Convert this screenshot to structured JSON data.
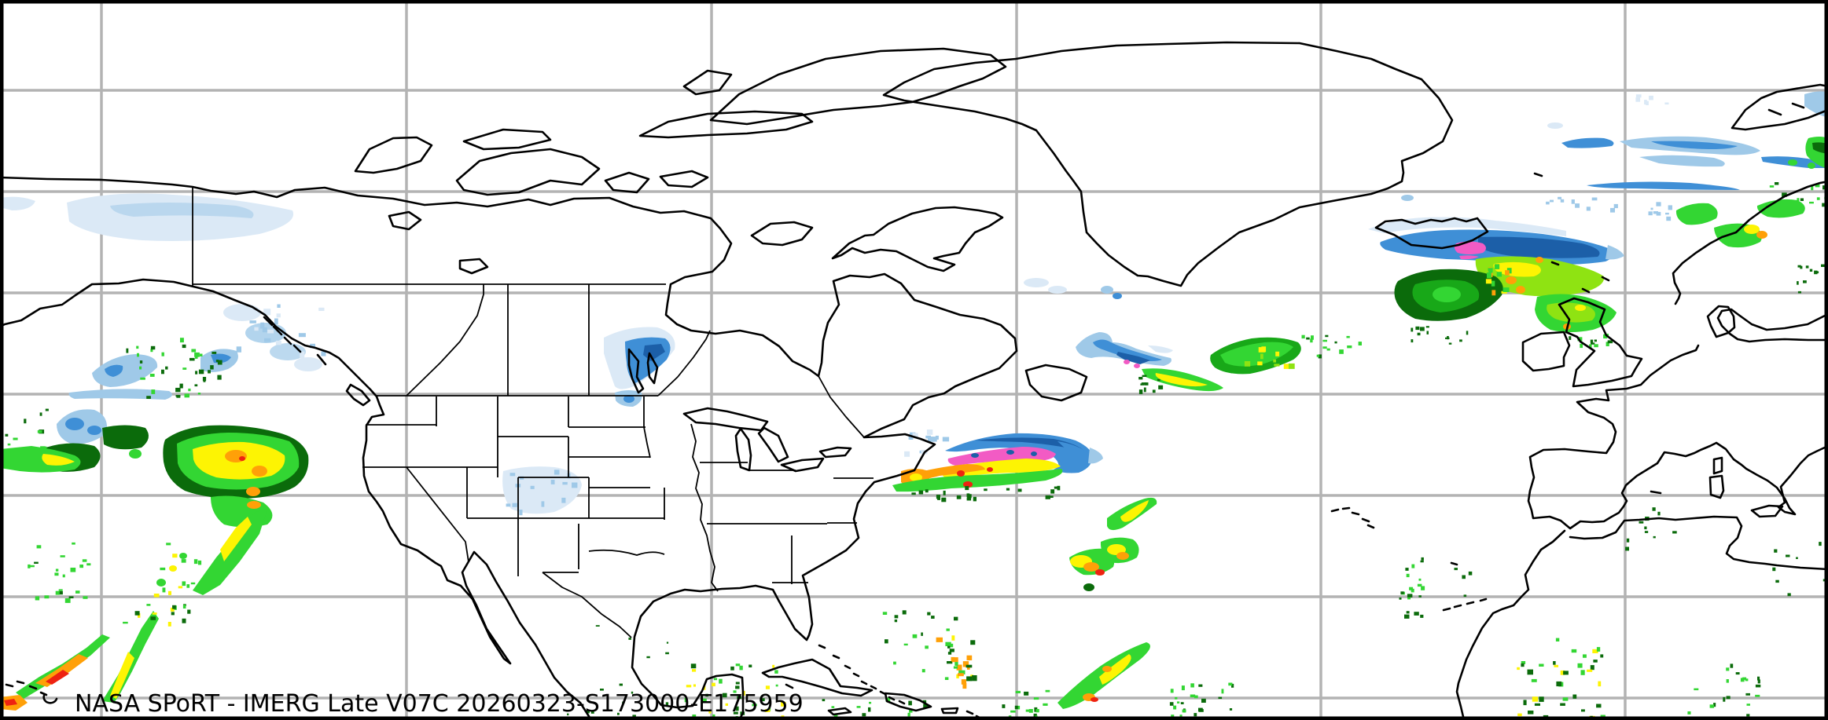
{
  "title": "NASA SPoRT - IMERG Late V07C 20260323-S173000-E175959",
  "colors": {
    "background": "#ffffff",
    "frame": "#000000",
    "grid": "#b3b3b3",
    "coastline": "#000000",
    "border": "#000000",
    "precip_scale": {
      "pale_blue": "#dbe9f6",
      "light_blue": "#9fc9e8",
      "mid_blue": "#3f8fd6",
      "deep_blue": "#1c5fa8",
      "dark_green": "#0b6b0b",
      "green": "#18a818",
      "bright_green": "#33d633",
      "yellow_green": "#8fe312",
      "yellow": "#fdf403",
      "orange": "#ffa008",
      "red": "#ee2211",
      "pink": "#f25bc4"
    }
  }
}
